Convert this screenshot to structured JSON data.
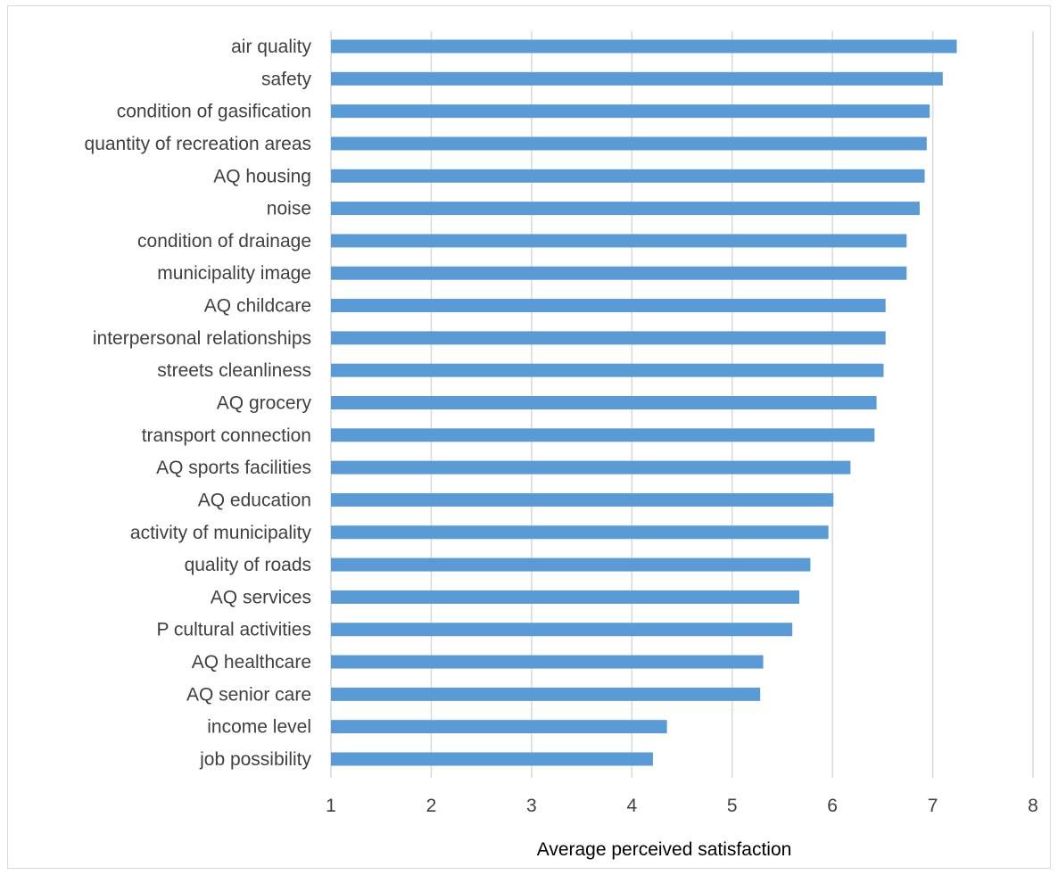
{
  "chart_data": {
    "type": "bar",
    "orientation": "horizontal",
    "categories": [
      "air quality",
      "safety",
      "condition of gasification",
      "quantity of recreation areas",
      "AQ housing",
      "noise",
      "condition of drainage",
      "municipality image",
      "AQ childcare",
      "interpersonal relationships",
      "streets cleanliness",
      "AQ grocery",
      "transport connection",
      "AQ sports facilities",
      "AQ education",
      "activity of municipality",
      "quality of roads",
      "AQ services",
      "P cultural activities",
      "AQ healthcare",
      "AQ senior care",
      "income level",
      "job possibility"
    ],
    "values": [
      7.24,
      7.1,
      6.97,
      6.94,
      6.92,
      6.87,
      6.74,
      6.74,
      6.53,
      6.53,
      6.51,
      6.44,
      6.42,
      6.18,
      6.01,
      5.96,
      5.78,
      5.67,
      5.6,
      5.31,
      5.28,
      4.35,
      4.21
    ],
    "xlabel": "Average perceived satisfaction",
    "ylabel": "",
    "title": "",
    "xlim": [
      1,
      8
    ],
    "xticks": [
      "1",
      "2",
      "3",
      "4",
      "5",
      "6",
      "7",
      "8"
    ],
    "grid": "vertical",
    "legend": "none",
    "bar_color": "#5b9bd5",
    "grid_color": "#d9d9d9"
  }
}
